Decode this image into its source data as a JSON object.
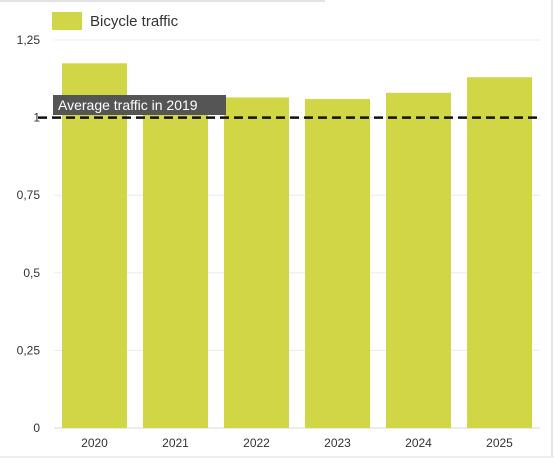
{
  "chart_data": {
    "type": "bar",
    "categories": [
      "2020",
      "2021",
      "2022",
      "2023",
      "2024",
      "2025"
    ],
    "series": [
      {
        "name": "Bicycle traffic",
        "values": [
          1.175,
          1.05,
          1.065,
          1.06,
          1.08,
          1.13
        ]
      }
    ],
    "yticks": [
      "0",
      "0,25",
      "0,5",
      "0,75",
      "1",
      "1,25"
    ],
    "ytick_values": [
      0,
      0.25,
      0.5,
      0.75,
      1,
      1.25
    ],
    "ylim": [
      0,
      1.25
    ],
    "grid": true,
    "legend": {
      "position": "top-left",
      "label": "Bicycle traffic"
    },
    "reference_line": {
      "value": 1,
      "label": "Average traffic in 2019",
      "style": "dashed"
    },
    "colors": {
      "bar": "#d1d647",
      "reference_line": "#111111",
      "label_bg": "#555555",
      "grid": "#ececec"
    }
  }
}
